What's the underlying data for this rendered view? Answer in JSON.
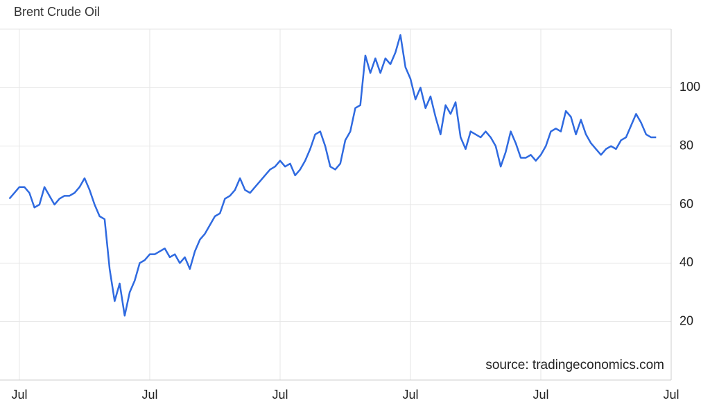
{
  "chart_data": {
    "type": "line",
    "title": "Brent Crude Oil",
    "annotation": "source: tradingeconomics.com",
    "categories": [
      null,
      null,
      "Jul",
      null,
      null,
      null,
      null,
      null,
      null,
      null,
      null,
      null,
      null,
      null,
      null,
      null,
      null,
      null,
      null,
      null,
      null,
      null,
      null,
      null,
      null,
      null,
      null,
      null,
      "Jul",
      null,
      null,
      null,
      null,
      null,
      null,
      null,
      null,
      null,
      null,
      null,
      null,
      null,
      null,
      null,
      null,
      null,
      null,
      null,
      null,
      null,
      null,
      null,
      null,
      null,
      "Jul",
      null,
      null,
      null,
      null,
      null,
      null,
      null,
      null,
      null,
      null,
      null,
      null,
      null,
      null,
      null,
      null,
      null,
      null,
      null,
      null,
      null,
      null,
      null,
      null,
      null,
      "Jul",
      null,
      null,
      null,
      null,
      null,
      null,
      null,
      null,
      null,
      null,
      null,
      null,
      null,
      null,
      null,
      null,
      null,
      null,
      null,
      null,
      null,
      null,
      null,
      null,
      null,
      "Jul",
      null,
      null,
      null,
      null,
      null,
      null,
      null,
      null,
      null,
      null,
      null,
      null,
      null,
      null,
      null,
      null,
      null,
      null,
      null,
      null,
      null,
      null,
      null,
      null,
      null,
      "Jul"
    ],
    "series": [
      {
        "color": "#2f6ae0",
        "values": [
          62,
          64,
          66,
          66,
          64,
          59,
          60,
          66,
          63,
          60,
          62,
          63,
          63,
          64,
          66,
          69,
          65,
          60,
          56,
          55,
          38,
          27,
          33,
          22,
          30,
          34,
          40,
          41,
          43,
          43,
          44,
          45,
          42,
          43,
          40,
          42,
          38,
          44,
          48,
          50,
          53,
          56,
          57,
          62,
          63,
          65,
          69,
          65,
          64,
          66,
          68,
          70,
          72,
          73,
          75,
          73,
          74,
          70,
          72,
          75,
          79,
          84,
          85,
          80,
          73,
          72,
          74,
          82,
          85,
          93,
          94,
          111,
          105,
          110,
          105,
          110,
          108,
          112,
          118,
          107,
          103,
          96,
          100,
          93,
          97,
          90,
          84,
          94,
          91,
          95,
          83,
          79,
          85,
          84,
          83,
          85,
          83,
          80,
          73,
          78,
          85,
          81,
          76,
          76,
          77,
          75,
          77,
          80,
          85,
          86,
          85,
          92,
          90,
          84,
          89,
          84,
          81,
          79,
          77,
          79,
          80,
          79,
          82,
          83,
          87,
          91,
          88,
          84,
          83,
          83,
          null,
          null,
          null
        ]
      }
    ],
    "ylim": [
      0,
      120
    ],
    "yticks": [
      20,
      40,
      60,
      80,
      100
    ],
    "grid": true
  }
}
